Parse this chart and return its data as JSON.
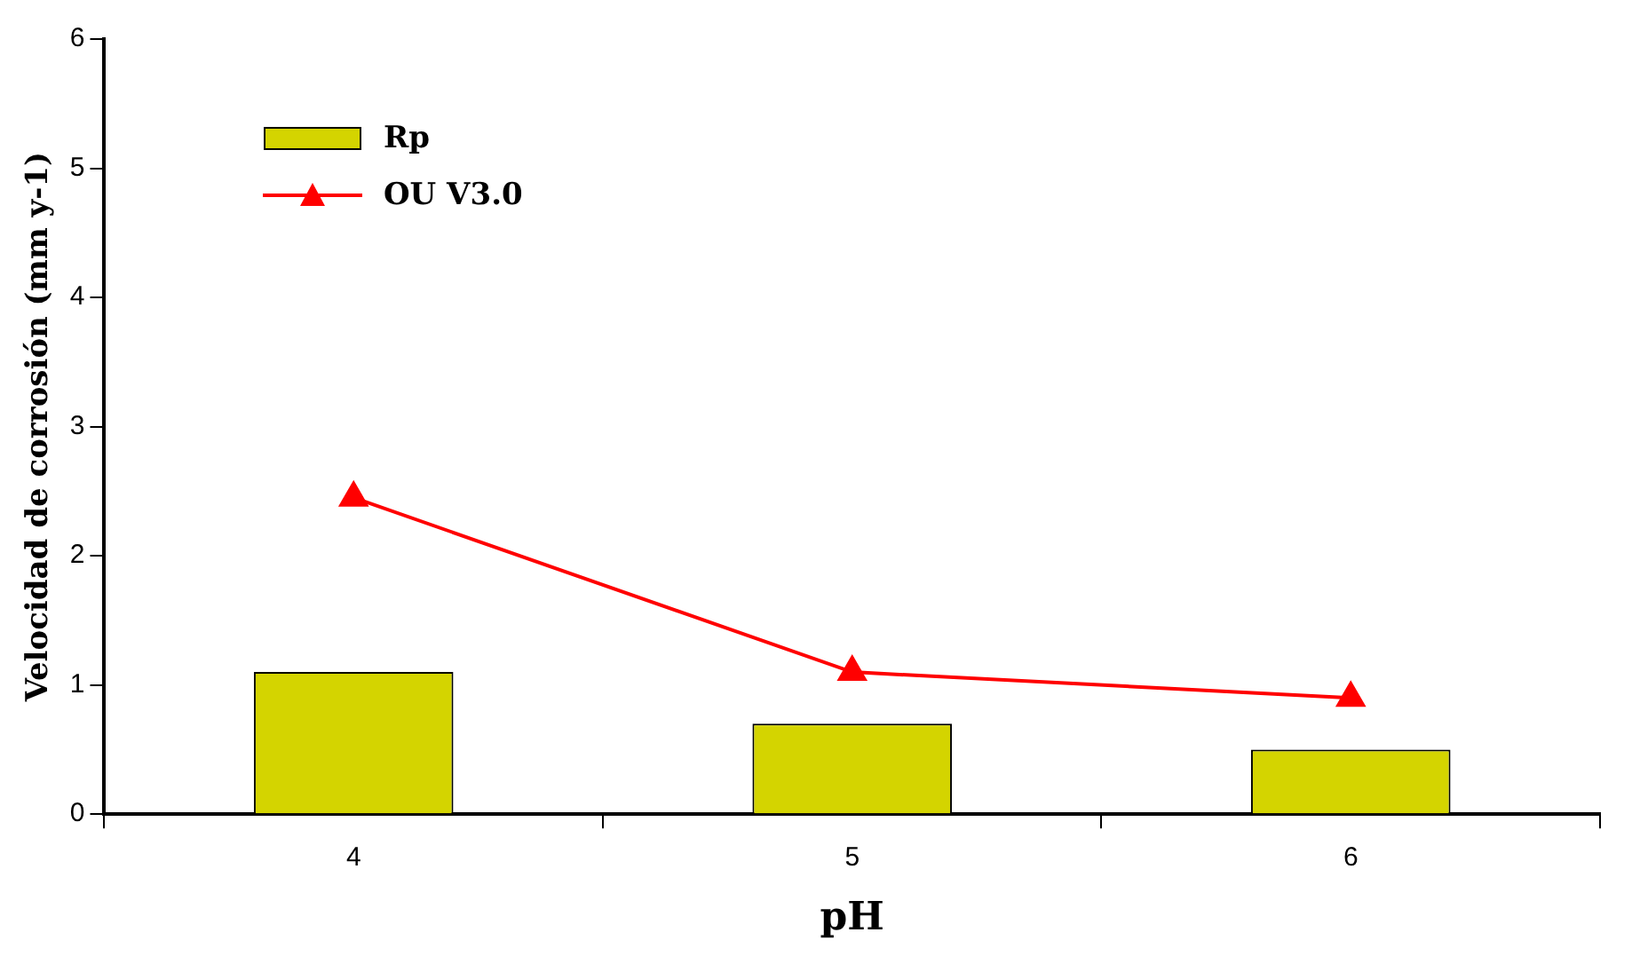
{
  "chart_data": {
    "type": "bar",
    "xlabel": "pH",
    "ylabel": "Velocidad de corrosión (mm y-1)",
    "categories": [
      "4",
      "5",
      "6"
    ],
    "series": [
      {
        "name": "Rp",
        "type": "bar",
        "color": "#d4d400",
        "values": [
          1.1,
          0.7,
          0.5
        ]
      },
      {
        "name": "OU V3.0",
        "type": "line",
        "color": "#ff0000",
        "values": [
          2.45,
          1.1,
          0.9
        ],
        "marker": "triangle"
      }
    ],
    "ylim": [
      0,
      6
    ],
    "yticks": [
      0,
      1,
      2,
      3,
      4,
      5,
      6
    ],
    "grid": false,
    "legend": "top left"
  }
}
